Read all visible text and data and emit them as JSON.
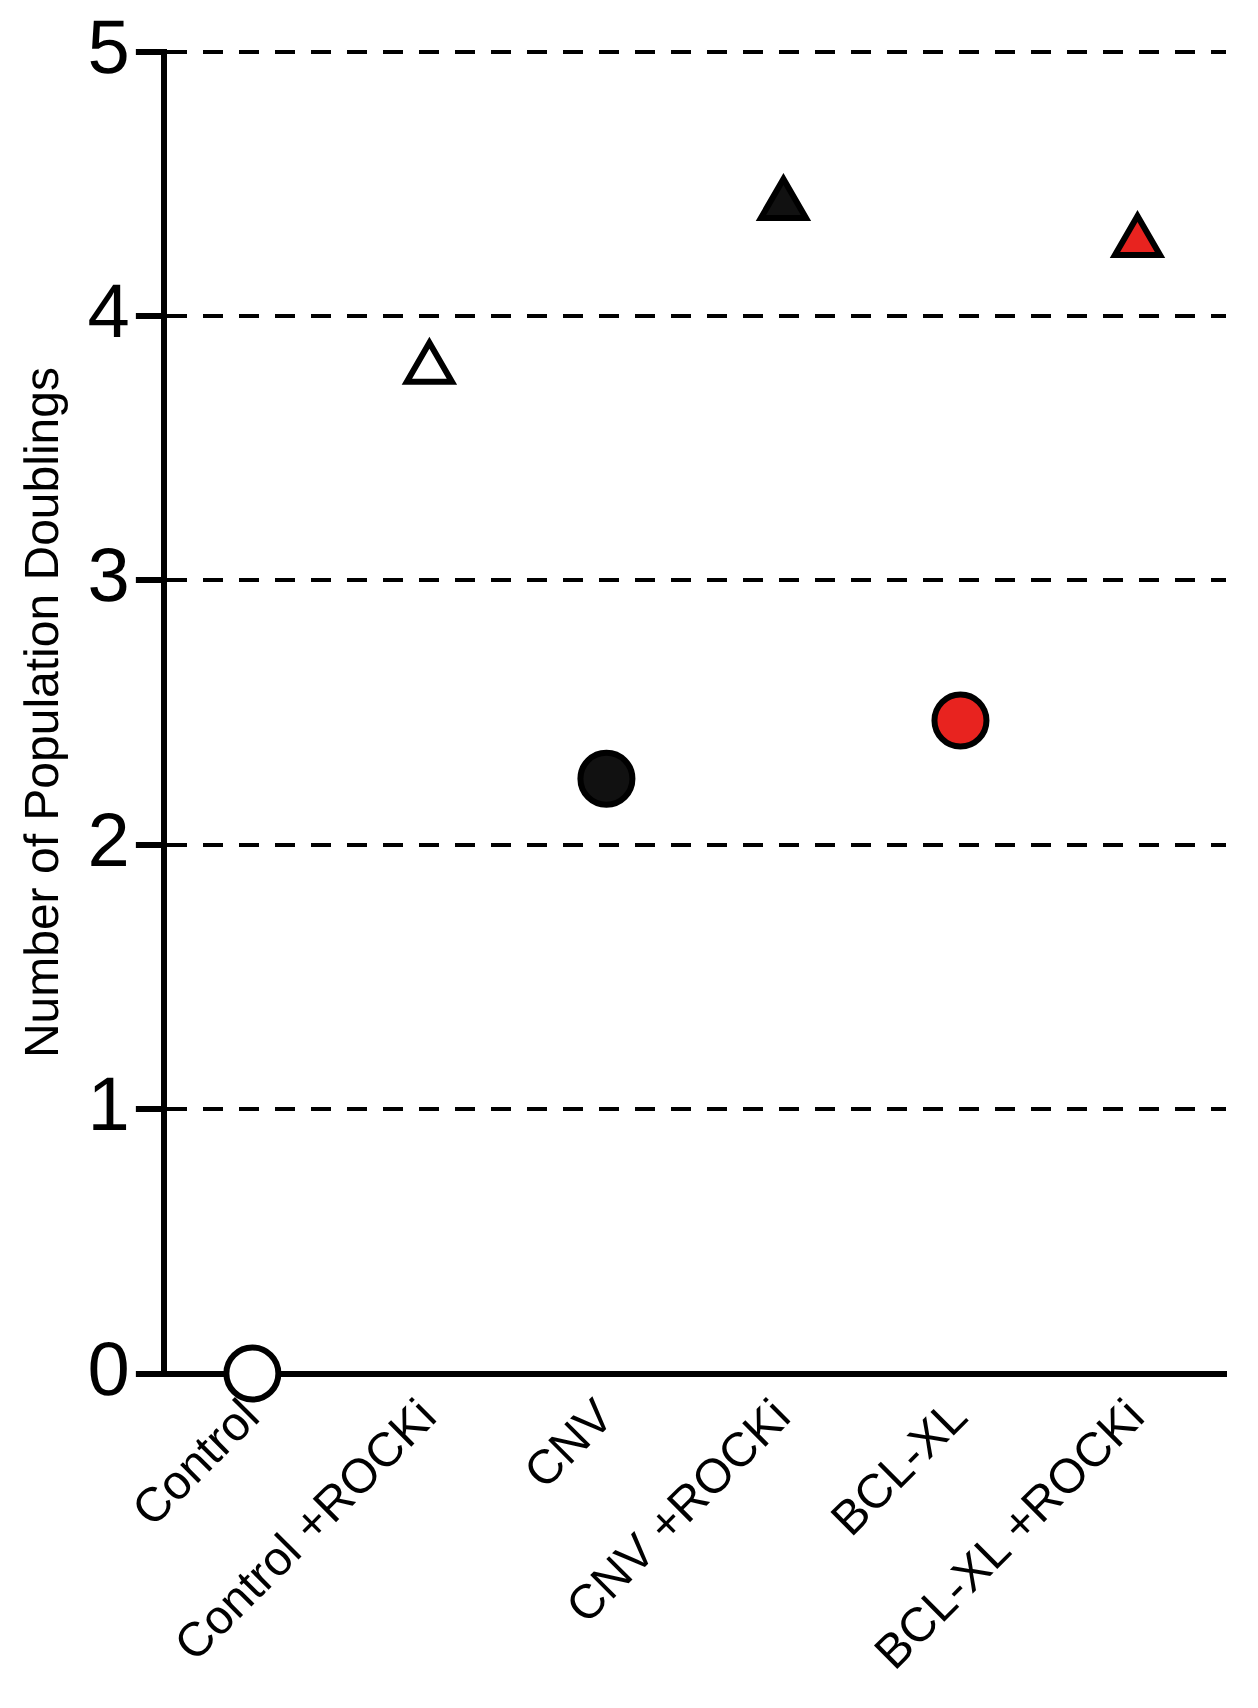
{
  "chart_data": {
    "type": "scatter",
    "ylabel": "Number of Population Doublings",
    "categories": [
      "Control",
      "Control +ROCKi",
      "CNV",
      "CNV +ROCKi",
      "BCL-XL",
      "BCL-XL +ROCKi"
    ],
    "series": [
      {
        "color": "#ffffff",
        "marker": "circle",
        "values": [
          0,
          null,
          null,
          null,
          null,
          null
        ]
      },
      {
        "color": "#ffffff",
        "marker": "triangle",
        "values": [
          null,
          3.8,
          null,
          null,
          null,
          null
        ]
      },
      {
        "color": "#111111",
        "marker": "circle",
        "values": [
          null,
          null,
          2.25,
          null,
          null,
          null
        ]
      },
      {
        "color": "#111111",
        "marker": "triangle",
        "values": [
          null,
          null,
          null,
          4.42,
          null,
          null
        ]
      },
      {
        "color": "#e8231f",
        "marker": "circle",
        "values": [
          null,
          null,
          null,
          null,
          2.47,
          null
        ]
      },
      {
        "color": "#e8231f",
        "marker": "triangle",
        "values": [
          null,
          null,
          null,
          null,
          null,
          4.28
        ]
      }
    ],
    "ylim": [
      0,
      5
    ],
    "yticks": [
      0,
      1,
      2,
      3,
      4,
      5
    ],
    "grid": "y",
    "line_style": "dashed",
    "legend": false
  }
}
